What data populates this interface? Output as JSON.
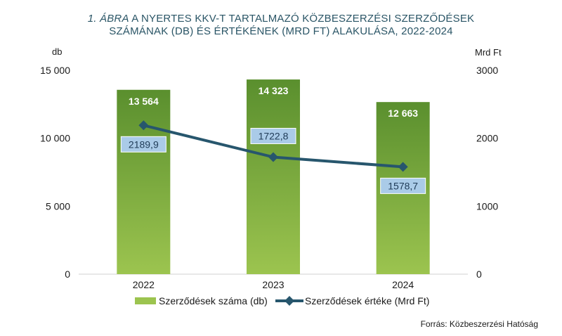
{
  "title": {
    "prefix": "1. ÁBRA",
    "line1": "A NYERTES KKV-T TARTALMAZÓ KÖZBESZERZÉSI SZERZŐDÉSEK",
    "line2": "SZÁMÁNAK (DB) ÉS ÉRTÉKÉNEK (MRD FT) ALAKULÁSA, 2022-2024"
  },
  "source": "Forrás: Közbeszerzési Hatóság",
  "colors": {
    "bar_top": "#5a8f2e",
    "bar_bottom": "#9cc44f",
    "line": "#27566d",
    "label_box": "#aacbe8",
    "label_box_border": "#ffffff"
  },
  "chart_data": {
    "type": "bar",
    "categories": [
      "2022",
      "2023",
      "2024"
    ],
    "y_left": {
      "label": "db",
      "ylim": [
        0,
        15000
      ],
      "ticks": [
        0,
        5000,
        10000,
        15000
      ],
      "tick_labels": [
        "0",
        "5 000",
        "10 000",
        "15 000"
      ]
    },
    "y_right": {
      "label": "Mrd Ft",
      "ylim": [
        0,
        3000
      ],
      "ticks": [
        0,
        1000,
        2000,
        3000
      ],
      "tick_labels": [
        "0",
        "1000",
        "2000",
        "3000"
      ]
    },
    "series": [
      {
        "name": "Szerződések száma (db)",
        "kind": "bar",
        "axis": "left",
        "values": [
          13564,
          14323,
          12663
        ],
        "value_labels": [
          "13 564",
          "14 323",
          "12 663"
        ]
      },
      {
        "name": "Szerződések értéke (Mrd Ft)",
        "kind": "line",
        "axis": "right",
        "marker": "diamond",
        "values": [
          2189.9,
          1722.8,
          1578.7
        ],
        "value_labels": [
          "2189,9",
          "1722,8",
          "1578,7"
        ]
      }
    ],
    "grid": false,
    "legend_position": "bottom"
  }
}
